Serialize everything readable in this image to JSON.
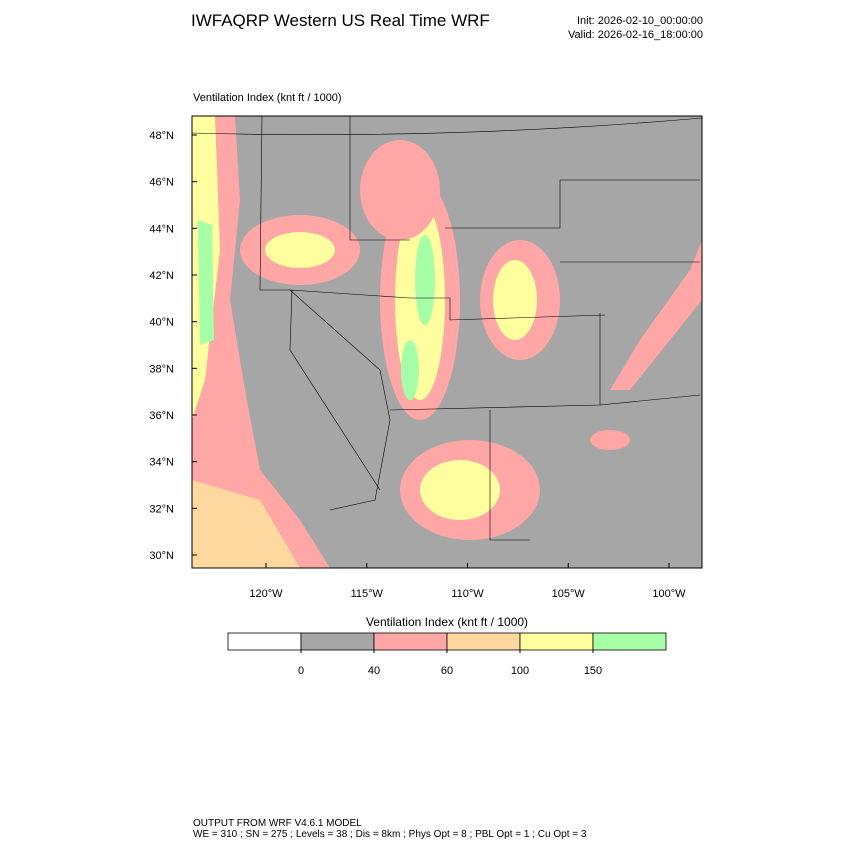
{
  "header": {
    "title": "IWFAQRP Western US Real Time WRF",
    "init": "Init: 2026-02-10_00:00:00",
    "valid": "Valid: 2026-02-16_18:00:00"
  },
  "map": {
    "field_label": "Ventilation Index   (knt ft / 1000)",
    "lat_ticks": [
      {
        "value": 30,
        "label": "30°N"
      },
      {
        "value": 32,
        "label": "32°N"
      },
      {
        "value": 34,
        "label": "34°N"
      },
      {
        "value": 36,
        "label": "36°N"
      },
      {
        "value": 38,
        "label": "38°N"
      },
      {
        "value": 40,
        "label": "40°N"
      },
      {
        "value": 42,
        "label": "42°N"
      },
      {
        "value": 44,
        "label": "44°N"
      },
      {
        "value": 46,
        "label": "46°N"
      },
      {
        "value": 48,
        "label": "48°N"
      }
    ],
    "lon_ticks": [
      {
        "value": -120,
        "label": "120°W"
      },
      {
        "value": -115,
        "label": "115°W"
      },
      {
        "value": -110,
        "label": "110°W"
      },
      {
        "value": -105,
        "label": "105°W"
      },
      {
        "value": -100,
        "label": "100°W"
      }
    ]
  },
  "colorbar": {
    "title": "Ventilation Index   (knt ft / 1000)",
    "levels": [
      0,
      40,
      60,
      100,
      150
    ],
    "colors": [
      "#ffffff",
      "#a6a6a6",
      "#ffa6a6",
      "#ffd8a0",
      "#ffffa0",
      "#a6ffa6"
    ]
  },
  "footer": {
    "line1": "OUTPUT FROM WRF V4.6.1 MODEL",
    "line2": "WE = 310 ; SN = 275 ; Levels = 38 ; Dis = 8km ; Phys Opt = 8 ; PBL Opt = 1 ; Cu Opt = 3"
  }
}
